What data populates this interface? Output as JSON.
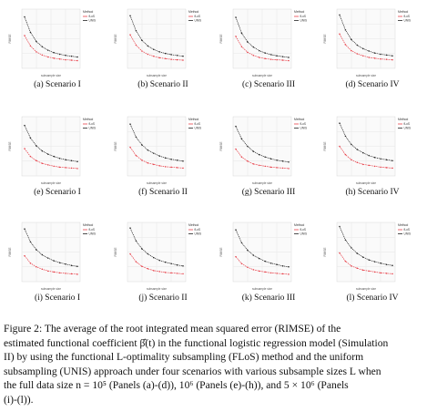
{
  "figure": {
    "legend_title": "Method",
    "series_names": [
      "fLoS",
      "UNIS"
    ],
    "ylabel": "RIMSE",
    "xlabel": "subsample size",
    "colors": {
      "flos": "#e8414a",
      "unis": "#222222",
      "grid": "#e6e6e6",
      "panel_bg": "#fafafa"
    }
  },
  "chart_data": [
    {
      "panel": "(a)",
      "caption": "(a) Scenario I",
      "type": "line",
      "n": "10^5",
      "x": [
        100,
        200,
        300,
        400,
        500,
        600,
        700,
        800,
        900,
        1000
      ],
      "series": [
        {
          "name": "fLoS",
          "values": [
            0.78,
            0.52,
            0.37,
            0.29,
            0.24,
            0.21,
            0.19,
            0.17,
            0.16,
            0.15
          ]
        },
        {
          "name": "UNIS",
          "values": [
            1.25,
            0.86,
            0.63,
            0.5,
            0.41,
            0.35,
            0.31,
            0.28,
            0.26,
            0.24
          ]
        }
      ],
      "ylim": [
        0,
        1.4
      ]
    },
    {
      "panel": "(b)",
      "caption": "(b) Scenario II",
      "type": "line",
      "n": "10^5",
      "x": [
        100,
        200,
        300,
        400,
        500,
        600,
        700,
        800,
        900,
        1000
      ],
      "series": [
        {
          "name": "fLoS",
          "values": [
            0.8,
            0.54,
            0.39,
            0.31,
            0.26,
            0.22,
            0.2,
            0.18,
            0.17,
            0.16
          ]
        },
        {
          "name": "UNIS",
          "values": [
            1.28,
            0.9,
            0.66,
            0.52,
            0.43,
            0.37,
            0.33,
            0.3,
            0.28,
            0.26
          ]
        }
      ],
      "ylim": [
        0,
        1.4
      ]
    },
    {
      "panel": "(c)",
      "caption": "(c) Scenario III",
      "type": "line",
      "n": "10^5",
      "x": [
        100,
        200,
        300,
        400,
        500,
        600,
        700,
        800,
        900,
        1000
      ],
      "series": [
        {
          "name": "fLoS",
          "values": [
            0.76,
            0.5,
            0.36,
            0.28,
            0.23,
            0.2,
            0.18,
            0.17,
            0.16,
            0.15
          ]
        },
        {
          "name": "UNIS",
          "values": [
            1.24,
            0.84,
            0.62,
            0.49,
            0.4,
            0.34,
            0.3,
            0.27,
            0.25,
            0.23
          ]
        }
      ],
      "ylim": [
        0,
        1.4
      ]
    },
    {
      "panel": "(d)",
      "caption": "(d) Scenario IV",
      "type": "line",
      "n": "10^5",
      "x": [
        100,
        200,
        300,
        400,
        500,
        600,
        700,
        800,
        900,
        1000
      ],
      "series": [
        {
          "name": "fLoS",
          "values": [
            0.82,
            0.55,
            0.4,
            0.32,
            0.27,
            0.23,
            0.21,
            0.19,
            0.18,
            0.17
          ]
        },
        {
          "name": "UNIS",
          "values": [
            1.3,
            0.92,
            0.68,
            0.54,
            0.45,
            0.39,
            0.34,
            0.31,
            0.29,
            0.27
          ]
        }
      ],
      "ylim": [
        0,
        1.4
      ]
    },
    {
      "panel": "(e)",
      "caption": "(e) Scenario I",
      "type": "line",
      "n": "10^6",
      "x": [
        100,
        200,
        300,
        400,
        500,
        600,
        700,
        800,
        900,
        1000
      ],
      "series": [
        {
          "name": "fLoS",
          "values": [
            0.55,
            0.38,
            0.29,
            0.23,
            0.2,
            0.17,
            0.15,
            0.14,
            0.13,
            0.12
          ]
        },
        {
          "name": "UNIS",
          "values": [
            1.05,
            0.78,
            0.61,
            0.5,
            0.43,
            0.38,
            0.34,
            0.31,
            0.29,
            0.27
          ]
        }
      ],
      "ylim": [
        0,
        1.2
      ]
    },
    {
      "panel": "(f)",
      "caption": "(f) Scenario II",
      "type": "line",
      "n": "10^6",
      "x": [
        100,
        200,
        300,
        400,
        500,
        600,
        700,
        800,
        900,
        1000
      ],
      "series": [
        {
          "name": "fLoS",
          "values": [
            0.58,
            0.4,
            0.3,
            0.24,
            0.21,
            0.18,
            0.16,
            0.15,
            0.14,
            0.13
          ]
        },
        {
          "name": "UNIS",
          "values": [
            1.08,
            0.8,
            0.63,
            0.52,
            0.45,
            0.39,
            0.35,
            0.32,
            0.3,
            0.28
          ]
        }
      ],
      "ylim": [
        0,
        1.2
      ]
    },
    {
      "panel": "(g)",
      "caption": "(g) Scenario III",
      "type": "line",
      "n": "10^6",
      "x": [
        100,
        200,
        300,
        400,
        500,
        600,
        700,
        800,
        900,
        1000
      ],
      "series": [
        {
          "name": "fLoS",
          "values": [
            0.54,
            0.37,
            0.28,
            0.22,
            0.19,
            0.17,
            0.15,
            0.14,
            0.13,
            0.12
          ]
        },
        {
          "name": "UNIS",
          "values": [
            1.03,
            0.76,
            0.6,
            0.49,
            0.42,
            0.37,
            0.33,
            0.3,
            0.28,
            0.26
          ]
        }
      ],
      "ylim": [
        0,
        1.2
      ]
    },
    {
      "panel": "(h)",
      "caption": "(h) Scenario IV",
      "type": "line",
      "n": "10^6",
      "x": [
        100,
        200,
        300,
        400,
        500,
        600,
        700,
        800,
        900,
        1000
      ],
      "series": [
        {
          "name": "fLoS",
          "values": [
            0.6,
            0.42,
            0.31,
            0.25,
            0.21,
            0.19,
            0.17,
            0.15,
            0.14,
            0.13
          ]
        },
        {
          "name": "UNIS",
          "values": [
            1.1,
            0.82,
            0.64,
            0.53,
            0.46,
            0.4,
            0.36,
            0.33,
            0.31,
            0.29
          ]
        }
      ],
      "ylim": [
        0,
        1.2
      ]
    },
    {
      "panel": "(i)",
      "caption": "(i) Scenario I",
      "type": "line",
      "n": "5x10^6",
      "x": [
        100,
        200,
        300,
        400,
        500,
        600,
        700,
        800,
        900,
        1000
      ],
      "series": [
        {
          "name": "fLoS",
          "values": [
            0.52,
            0.36,
            0.28,
            0.23,
            0.19,
            0.17,
            0.15,
            0.14,
            0.13,
            0.12
          ]
        },
        {
          "name": "UNIS",
          "values": [
            1.1,
            0.82,
            0.65,
            0.54,
            0.47,
            0.41,
            0.37,
            0.34,
            0.31,
            0.29
          ]
        }
      ],
      "ylim": [
        0,
        1.2
      ]
    },
    {
      "panel": "(j)",
      "caption": "(j) Scenario II",
      "type": "line",
      "n": "5x10^6",
      "x": [
        100,
        200,
        300,
        400,
        500,
        600,
        700,
        800,
        900,
        1000
      ],
      "series": [
        {
          "name": "fLoS",
          "values": [
            0.56,
            0.39,
            0.29,
            0.24,
            0.2,
            0.18,
            0.16,
            0.15,
            0.14,
            0.13
          ]
        },
        {
          "name": "UNIS",
          "values": [
            1.12,
            0.84,
            0.67,
            0.56,
            0.48,
            0.42,
            0.38,
            0.35,
            0.32,
            0.3
          ]
        }
      ],
      "ylim": [
        0,
        1.2
      ]
    },
    {
      "panel": "(k)",
      "caption": "(k) Scenario III",
      "type": "line",
      "n": "5x10^6",
      "x": [
        100,
        200,
        300,
        400,
        500,
        600,
        700,
        800,
        900,
        1000
      ],
      "series": [
        {
          "name": "fLoS",
          "values": [
            0.5,
            0.35,
            0.27,
            0.22,
            0.19,
            0.17,
            0.15,
            0.14,
            0.13,
            0.12
          ]
        },
        {
          "name": "UNIS",
          "values": [
            1.08,
            0.8,
            0.64,
            0.53,
            0.46,
            0.4,
            0.36,
            0.33,
            0.3,
            0.28
          ]
        }
      ],
      "ylim": [
        0,
        1.2
      ]
    },
    {
      "panel": "(l)",
      "caption": "(l) Scenario IV",
      "type": "line",
      "n": "5x10^6",
      "x": [
        100,
        200,
        300,
        400,
        500,
        600,
        700,
        800,
        900,
        1000
      ],
      "series": [
        {
          "name": "fLoS",
          "values": [
            0.58,
            0.4,
            0.3,
            0.25,
            0.21,
            0.19,
            0.17,
            0.15,
            0.14,
            0.13
          ]
        },
        {
          "name": "UNIS",
          "values": [
            1.15,
            0.86,
            0.69,
            0.57,
            0.49,
            0.43,
            0.39,
            0.36,
            0.33,
            0.31
          ]
        }
      ],
      "ylim": [
        0,
        1.2
      ]
    }
  ],
  "caption": {
    "lines": [
      "Figure 2:  The average of the root integrated mean squared error (RIMSE) of the",
      "estimated functional coefficient β̂(t) in the functional logistic regression model (Simulation",
      "II) by using the functional L-optimality subsampling (FLoS) method and the uniform",
      "subsampling (UNIS) approach under four scenarios with various subsample sizes L when",
      "the full data size n = 10⁵ (Panels (a)-(d)), 10⁶ (Panels (e)-(h)), and 5 × 10⁶ (Panels",
      "(i)-(l))."
    ]
  }
}
